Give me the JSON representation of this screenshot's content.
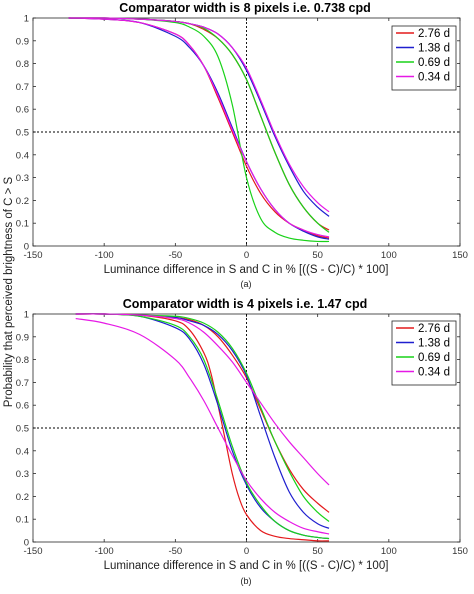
{
  "figure": {
    "shared_ylabel": "Probability that perceived brightness of C > S"
  },
  "chart_data": [
    {
      "type": "line",
      "panel_label": "(a)",
      "title": "Comparator width is 8 pixels i.e. 0.738 cpd",
      "xlabel": "Luminance difference in S and C in % [((S - C)/C) * 100]",
      "ylabel": "Probability that perceived brightness of C > S",
      "xlim": [
        -150,
        150
      ],
      "ylim": [
        0,
        1
      ],
      "xticks": [
        -150,
        -100,
        -50,
        0,
        50,
        100,
        150
      ],
      "yticks": [
        0,
        0.1,
        0.2,
        0.3,
        0.4,
        0.5,
        0.6,
        0.7,
        0.8,
        0.9,
        1
      ],
      "reference_lines": {
        "x": 0,
        "y": 0.5
      },
      "grid": false,
      "legend_position": "top-right",
      "series": [
        {
          "name": "2.76 d",
          "color": "#e41a1c",
          "x": [
            -125,
            -100,
            -75,
            -50,
            -40,
            -30,
            -20,
            -10,
            0,
            10,
            20,
            30,
            40,
            50,
            58
          ],
          "y": [
            1.0,
            0.995,
            0.98,
            0.93,
            0.88,
            0.79,
            0.65,
            0.5,
            0.35,
            0.23,
            0.15,
            0.1,
            0.07,
            0.045,
            0.035
          ]
        },
        {
          "name": "1.38 d",
          "color": "#1f1fcf",
          "x": [
            -125,
            -100,
            -75,
            -50,
            -40,
            -30,
            -20,
            -10,
            0,
            10,
            20,
            30,
            40,
            50,
            58
          ],
          "y": [
            1.0,
            0.995,
            0.98,
            0.92,
            0.87,
            0.79,
            0.67,
            0.52,
            0.37,
            0.25,
            0.16,
            0.1,
            0.065,
            0.04,
            0.03
          ]
        },
        {
          "name": "0.69 d",
          "color": "#19d219",
          "x": [
            -125,
            -100,
            -75,
            -50,
            -40,
            -30,
            -20,
            -10,
            0,
            10,
            20,
            30,
            40,
            50,
            58
          ],
          "y": [
            1.0,
            1.0,
            0.995,
            0.98,
            0.96,
            0.92,
            0.83,
            0.62,
            0.3,
            0.12,
            0.06,
            0.035,
            0.025,
            0.02,
            0.02
          ]
        },
        {
          "name": "0.34 d",
          "color": "#e619e6",
          "x": [
            -125,
            -100,
            -75,
            -50,
            -40,
            -30,
            -20,
            -10,
            0,
            10,
            20,
            30,
            40,
            50,
            58
          ],
          "y": [
            1.0,
            0.995,
            0.98,
            0.93,
            0.88,
            0.79,
            0.66,
            0.51,
            0.37,
            0.25,
            0.16,
            0.1,
            0.07,
            0.05,
            0.04
          ]
        },
        {
          "name": "",
          "color": "#e41a1c",
          "x": [
            -125,
            -100,
            -75,
            -50,
            -40,
            -30,
            -20,
            -10,
            0,
            10,
            20,
            30,
            40,
            50,
            58
          ],
          "y": [
            1.0,
            1.0,
            0.995,
            0.985,
            0.975,
            0.95,
            0.91,
            0.84,
            0.73,
            0.57,
            0.41,
            0.27,
            0.17,
            0.1,
            0.07
          ]
        },
        {
          "name": "",
          "color": "#1f1fcf",
          "x": [
            -125,
            -100,
            -75,
            -50,
            -40,
            -30,
            -20,
            -10,
            0,
            10,
            20,
            30,
            40,
            50,
            58
          ],
          "y": [
            1.0,
            1.0,
            0.995,
            0.985,
            0.975,
            0.96,
            0.93,
            0.87,
            0.77,
            0.63,
            0.48,
            0.35,
            0.24,
            0.17,
            0.13
          ]
        },
        {
          "name": "",
          "color": "#19d219",
          "x": [
            -125,
            -100,
            -75,
            -50,
            -40,
            -30,
            -20,
            -10,
            0,
            10,
            20,
            30,
            40,
            50,
            58
          ],
          "y": [
            1.0,
            1.0,
            0.995,
            0.985,
            0.975,
            0.955,
            0.91,
            0.84,
            0.73,
            0.57,
            0.41,
            0.27,
            0.17,
            0.1,
            0.06
          ]
        },
        {
          "name": "",
          "color": "#e619e6",
          "x": [
            -125,
            -100,
            -75,
            -50,
            -40,
            -30,
            -20,
            -10,
            0,
            10,
            20,
            30,
            40,
            50,
            58
          ],
          "y": [
            1.0,
            1.0,
            0.995,
            0.985,
            0.975,
            0.96,
            0.93,
            0.87,
            0.78,
            0.64,
            0.49,
            0.36,
            0.26,
            0.19,
            0.15
          ]
        }
      ]
    },
    {
      "type": "line",
      "panel_label": "(b)",
      "title": "Comparator width is 4 pixels i.e. 1.47 cpd",
      "xlabel": "Luminance difference in S and C in % [((S - C)/C) * 100]",
      "ylabel": "Probability that perceived brightness of C > S",
      "xlim": [
        -150,
        150
      ],
      "ylim": [
        0,
        1
      ],
      "xticks": [
        -150,
        -100,
        -50,
        0,
        50,
        100,
        150
      ],
      "yticks": [
        0,
        0.1,
        0.2,
        0.3,
        0.4,
        0.5,
        0.6,
        0.7,
        0.8,
        0.9,
        1
      ],
      "reference_lines": {
        "x": 0,
        "y": 0.5
      },
      "grid": false,
      "legend_position": "top-right",
      "series": [
        {
          "name": "2.76 d",
          "color": "#e41a1c",
          "x": [
            -120,
            -100,
            -75,
            -50,
            -40,
            -30,
            -25,
            -20,
            -15,
            -10,
            -5,
            0,
            10,
            20,
            30,
            40,
            50,
            58
          ],
          "y": [
            1.0,
            1.0,
            0.995,
            0.97,
            0.93,
            0.83,
            0.74,
            0.6,
            0.45,
            0.3,
            0.19,
            0.12,
            0.05,
            0.025,
            0.015,
            0.01,
            0.005,
            0.005
          ]
        },
        {
          "name": "1.38 d",
          "color": "#1f1fcf",
          "x": [
            -120,
            -100,
            -75,
            -50,
            -40,
            -30,
            -20,
            -10,
            0,
            10,
            20,
            30,
            40,
            50,
            58
          ],
          "y": [
            1.0,
            1.0,
            0.99,
            0.94,
            0.89,
            0.78,
            0.6,
            0.4,
            0.25,
            0.15,
            0.09,
            0.05,
            0.03,
            0.02,
            0.015
          ]
        },
        {
          "name": "0.69 d",
          "color": "#19d219",
          "x": [
            -120,
            -100,
            -75,
            -50,
            -40,
            -30,
            -20,
            -10,
            0,
            10,
            20,
            30,
            40,
            50,
            58
          ],
          "y": [
            1.0,
            1.0,
            0.99,
            0.95,
            0.9,
            0.8,
            0.62,
            0.42,
            0.26,
            0.16,
            0.09,
            0.05,
            0.03,
            0.02,
            0.015
          ]
        },
        {
          "name": "0.34 d",
          "color": "#e619e6",
          "x": [
            -120,
            -100,
            -75,
            -50,
            -40,
            -30,
            -20,
            -10,
            0,
            10,
            20,
            30,
            40,
            50,
            58
          ],
          "y": [
            0.98,
            0.96,
            0.91,
            0.8,
            0.72,
            0.62,
            0.5,
            0.38,
            0.27,
            0.19,
            0.13,
            0.09,
            0.06,
            0.045,
            0.035
          ]
        },
        {
          "name": "",
          "color": "#e41a1c",
          "x": [
            -120,
            -100,
            -75,
            -50,
            -40,
            -30,
            -20,
            -10,
            0,
            10,
            20,
            30,
            40,
            50,
            58
          ],
          "y": [
            1.0,
            1.0,
            0.995,
            0.985,
            0.975,
            0.95,
            0.9,
            0.82,
            0.72,
            0.58,
            0.44,
            0.32,
            0.23,
            0.17,
            0.13
          ]
        },
        {
          "name": "",
          "color": "#1f1fcf",
          "x": [
            -120,
            -100,
            -75,
            -50,
            -40,
            -30,
            -20,
            -10,
            0,
            10,
            20,
            30,
            40,
            50,
            58
          ],
          "y": [
            1.0,
            1.0,
            0.995,
            0.985,
            0.97,
            0.95,
            0.91,
            0.84,
            0.73,
            0.55,
            0.37,
            0.22,
            0.13,
            0.08,
            0.06
          ]
        },
        {
          "name": "",
          "color": "#19d219",
          "x": [
            -120,
            -100,
            -75,
            -50,
            -40,
            -30,
            -20,
            -10,
            0,
            10,
            20,
            30,
            40,
            50,
            58
          ],
          "y": [
            1.0,
            1.0,
            0.995,
            0.99,
            0.98,
            0.96,
            0.92,
            0.85,
            0.74,
            0.59,
            0.44,
            0.31,
            0.2,
            0.13,
            0.09
          ]
        },
        {
          "name": "",
          "color": "#e619e6",
          "x": [
            -120,
            -100,
            -75,
            -50,
            -40,
            -30,
            -20,
            -10,
            0,
            10,
            20,
            30,
            40,
            50,
            58
          ],
          "y": [
            1.0,
            1.0,
            0.995,
            0.98,
            0.96,
            0.92,
            0.86,
            0.79,
            0.7,
            0.61,
            0.52,
            0.44,
            0.37,
            0.3,
            0.25
          ]
        }
      ]
    }
  ]
}
